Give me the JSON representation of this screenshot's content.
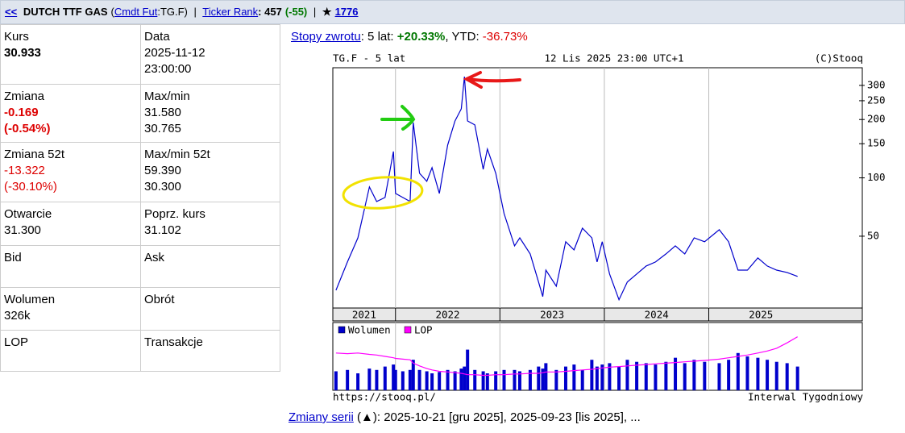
{
  "header": {
    "back": "<<",
    "name": "DUTCH TTF GAS",
    "ticker_open": "(",
    "ticker_link": "Cmdt Fut",
    "ticker_close": ":TG.F)",
    "sep": "|",
    "rank_label": "Ticker Rank",
    "rank_value": ": 457",
    "rank_change": "(-55)",
    "star": "★",
    "star_count": "1776"
  },
  "table": {
    "rows": [
      [
        {
          "label": "Kurs",
          "values": [
            "30.933"
          ]
        },
        {
          "label": "Data",
          "values": [
            "2025-11-12",
            "23:00:00"
          ]
        }
      ],
      [
        {
          "label": "Zmiana",
          "values": [
            "-0.169",
            "(-0.54%)"
          ]
        },
        {
          "label": "Max/min",
          "values": [
            "31.580",
            "30.765"
          ]
        }
      ],
      [
        {
          "label": "Zmiana 52t",
          "values": [
            "-13.322",
            "(-30.10%)"
          ]
        },
        {
          "label": "Max/min 52t",
          "values": [
            "59.390",
            "30.300"
          ]
        }
      ],
      [
        {
          "label": "Otwarcie",
          "values": [
            "31.300"
          ]
        },
        {
          "label": "Poprz. kurs",
          "values": [
            "31.102"
          ]
        }
      ],
      [
        {
          "label": "Bid",
          "values": []
        },
        {
          "label": "Ask",
          "values": []
        }
      ],
      [
        {
          "label": "Wolumen",
          "values": [
            "326k"
          ]
        },
        {
          "label": "Obrót",
          "values": []
        }
      ],
      [
        {
          "label": "LOP",
          "values": []
        },
        {
          "label": "Transakcje",
          "values": []
        }
      ]
    ]
  },
  "returns": {
    "link": "Stopy zwrotu",
    "period1": ": 5 lat: ",
    "value1": "+20.33%",
    "period2": ", YTD: ",
    "value2": "-36.73%"
  },
  "footer": {
    "link": "Zmiany serii",
    "text": " (▲): 2025-10-21 [gru 2025], 2025-09-23 [lis 2025], ..."
  },
  "chart_data": [
    {
      "type": "line",
      "title": "TG.F - 5 lat",
      "subtitle": "12 Lis 2025 23:00 UTC+1",
      "credit": "(C)Stooq",
      "log_scale": true,
      "grid": "x",
      "color": "#0000cc",
      "x": [
        2021.43,
        2021.54,
        2021.64,
        2021.75,
        2021.82,
        2021.9,
        2021.98,
        2022.0,
        2022.07,
        2022.14,
        2022.17,
        2022.23,
        2022.3,
        2022.35,
        2022.42,
        2022.5,
        2022.57,
        2022.63,
        2022.66,
        2022.69,
        2022.76,
        2022.84,
        2022.88,
        2022.96,
        2023.04,
        2023.14,
        2023.19,
        2023.29,
        2023.37,
        2023.41,
        2023.44,
        2023.54,
        2023.63,
        2023.71,
        2023.79,
        2023.88,
        2023.93,
        2023.98,
        2024.05,
        2024.14,
        2024.22,
        2024.31,
        2024.4,
        2024.49,
        2024.59,
        2024.68,
        2024.77,
        2024.86,
        2024.96,
        2025.1,
        2025.19,
        2025.28,
        2025.37,
        2025.47,
        2025.56,
        2025.65,
        2025.75,
        2025.85
      ],
      "values": [
        26.3,
        36.8,
        49.0,
        89.7,
        75.5,
        79.2,
        136.7,
        83.1,
        79.2,
        75.5,
        193,
        105.6,
        95.9,
        112.9,
        83.1,
        147.6,
        196.7,
        227,
        333,
        196.7,
        187.6,
        110.7,
        140.7,
        105.6,
        65.4,
        44.6,
        49.0,
        40.5,
        29.0,
        24.4,
        33.4,
        27.6,
        46.8,
        42.5,
        55.0,
        49.0,
        36.8,
        46.8,
        31.9,
        23.5,
        29.0,
        31.9,
        35.1,
        36.8,
        40.5,
        44.6,
        40.5,
        49.0,
        46.8,
        54.0,
        46.8,
        33.4,
        33.4,
        38.6,
        35.1,
        33.4,
        32.5,
        31.0
      ],
      "xlim": [
        2021.4,
        2026.47
      ],
      "years": [
        2021,
        2022,
        2023,
        2024,
        2025
      ],
      "ylim": [
        21.3,
        370
      ],
      "yticks": [
        50,
        100,
        150,
        200,
        250,
        300
      ]
    },
    {
      "type": "bar",
      "footer_left": "https://stooq.pl/",
      "footer_right": "Interwal Tygodniowy",
      "x": [
        2021.43,
        2021.54,
        2021.64,
        2021.75,
        2021.82,
        2021.9,
        2021.98,
        2022.0,
        2022.07,
        2022.14,
        2022.17,
        2022.23,
        2022.3,
        2022.35,
        2022.42,
        2022.5,
        2022.57,
        2022.63,
        2022.66,
        2022.69,
        2022.76,
        2022.84,
        2022.88,
        2022.96,
        2023.04,
        2023.14,
        2023.19,
        2023.29,
        2023.37,
        2023.41,
        2023.44,
        2023.54,
        2023.63,
        2023.71,
        2023.79,
        2023.88,
        2023.93,
        2023.98,
        2024.05,
        2024.14,
        2024.22,
        2024.31,
        2024.4,
        2024.49,
        2024.59,
        2024.68,
        2024.77,
        2024.86,
        2024.96,
        2025.1,
        2025.19,
        2025.28,
        2025.37,
        2025.47,
        2025.56,
        2025.65,
        2025.75,
        2025.85
      ],
      "xlim": [
        2021.4,
        2026.47
      ],
      "ylim": [
        0,
        100
      ],
      "series": [
        {
          "name": "Wolumen",
          "color": "#0000cc",
          "values": [
            28,
            30,
            25,
            32,
            30,
            35,
            38,
            30,
            28,
            30,
            45,
            30,
            28,
            25,
            27,
            30,
            28,
            32,
            35,
            60,
            30,
            28,
            25,
            28,
            30,
            30,
            28,
            30,
            35,
            32,
            40,
            30,
            35,
            38,
            30,
            45,
            35,
            38,
            40,
            35,
            45,
            42,
            40,
            38,
            42,
            48,
            40,
            45,
            42,
            40,
            45,
            55,
            50,
            48,
            45,
            42,
            40,
            35
          ]
        },
        {
          "name": "LOP",
          "color": "#ff00ff",
          "values": [
            55,
            54,
            55,
            53,
            52,
            50,
            48,
            47,
            46,
            45,
            40,
            36,
            32,
            30,
            28,
            27,
            26,
            25,
            24,
            23,
            23,
            22,
            22,
            23,
            23,
            24,
            24,
            25,
            25,
            26,
            27,
            27,
            28,
            29,
            30,
            31,
            32,
            33,
            34,
            35,
            36,
            37,
            38,
            39,
            40,
            41,
            42,
            43,
            44,
            46,
            48,
            50,
            52,
            55,
            58,
            62,
            70,
            79
          ]
        }
      ]
    }
  ]
}
